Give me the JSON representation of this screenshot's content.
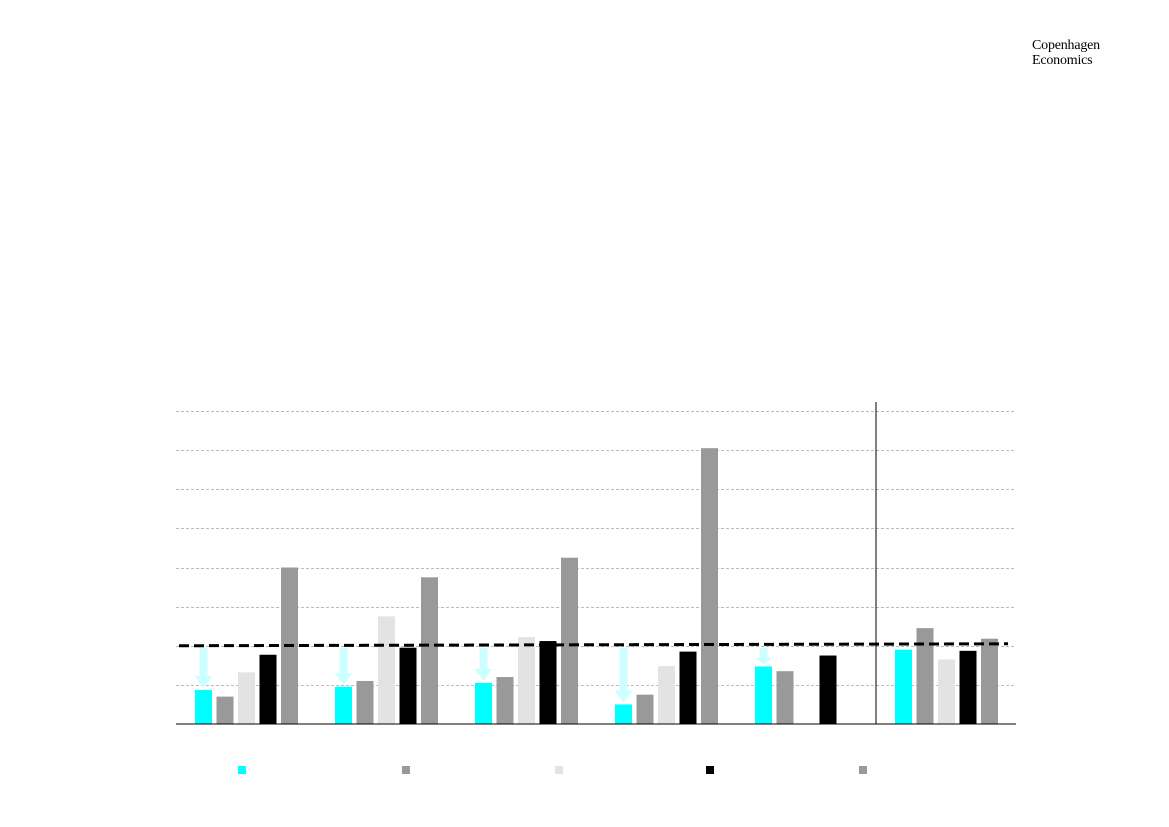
{
  "brand": {
    "line1": "Copenhagen",
    "line2": "Economics"
  },
  "chart_data": {
    "type": "bar",
    "categories": [
      "",
      "",
      "",
      "",
      "",
      ""
    ],
    "series": [
      {
        "color": "#00ffff",
        "values": [
          0.87,
          0.95,
          1.05,
          0.5,
          1.47,
          1.9
        ]
      },
      {
        "color": "#999999",
        "values": [
          0.7,
          1.1,
          1.2,
          0.75,
          1.35,
          2.45
        ]
      },
      {
        "color": "#e3e3e3",
        "values": [
          1.32,
          2.75,
          2.22,
          1.48,
          null,
          1.65
        ]
      },
      {
        "color": "#000000",
        "values": [
          1.77,
          1.95,
          2.12,
          1.85,
          1.75,
          1.87
        ]
      },
      {
        "color": "#999999",
        "values": [
          4.0,
          3.75,
          4.25,
          7.05,
          null,
          2.18
        ]
      }
    ],
    "ylim": [
      0,
      8
    ],
    "y_grid_step": 1,
    "grid": true,
    "reference_line": {
      "value": 2.0,
      "value_end": 2.05,
      "style": "dashed",
      "color": "#000000"
    },
    "separator_after_category": 5,
    "arrows": [
      {
        "category": 0,
        "from": 2.0,
        "to": 0.87,
        "color": "#ccffff"
      },
      {
        "category": 1,
        "from": 2.0,
        "to": 0.95,
        "color": "#ccffff"
      },
      {
        "category": 2,
        "from": 2.0,
        "to": 1.05,
        "color": "#ccffff"
      },
      {
        "category": 3,
        "from": 2.0,
        "to": 0.5,
        "color": "#ccffff"
      },
      {
        "category": 4,
        "from": 2.0,
        "to": 1.47,
        "color": "#ccffff"
      }
    ],
    "legend": [
      {
        "label": "",
        "color": "#00ffff"
      },
      {
        "label": "",
        "color": "#999999"
      },
      {
        "label": "",
        "color": "#e3e3e3"
      },
      {
        "label": "",
        "color": "#000000"
      },
      {
        "label": "",
        "color": "#999999"
      }
    ]
  }
}
